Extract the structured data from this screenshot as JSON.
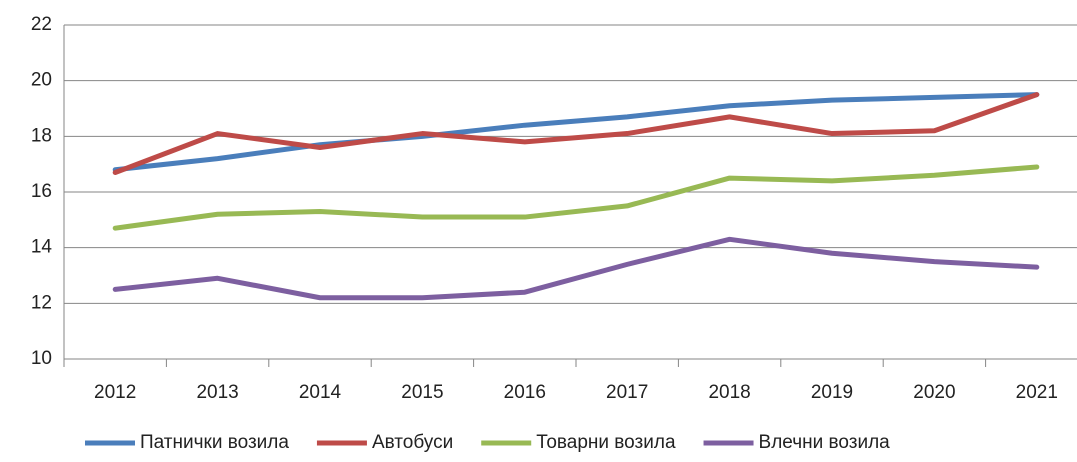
{
  "chart_data": {
    "type": "line",
    "categories": [
      "2012",
      "2013",
      "2014",
      "2015",
      "2016",
      "2017",
      "2018",
      "2019",
      "2020",
      "2021"
    ],
    "series": [
      {
        "name": "Патнички возила",
        "color": "#4a7ebb",
        "values": [
          16.8,
          17.2,
          17.7,
          18.0,
          18.4,
          18.7,
          19.1,
          19.3,
          19.4,
          19.5
        ]
      },
      {
        "name": "Автобуси",
        "color": "#be4b48",
        "values": [
          16.7,
          18.1,
          17.6,
          18.1,
          17.8,
          18.1,
          18.7,
          18.1,
          18.2,
          19.5
        ]
      },
      {
        "name": "Товарни возила",
        "color": "#98b954",
        "values": [
          14.7,
          15.2,
          15.3,
          15.1,
          15.1,
          15.5,
          16.5,
          16.4,
          16.6,
          16.9
        ]
      },
      {
        "name": "Влечни возила",
        "color": "#7d5fa0",
        "values": [
          12.5,
          12.9,
          12.2,
          12.2,
          12.4,
          13.4,
          14.3,
          13.8,
          13.5,
          13.3
        ]
      }
    ],
    "ylim": [
      10,
      22
    ],
    "yticks": [
      10,
      12,
      14,
      16,
      18,
      20,
      22
    ],
    "grid": true,
    "legend": "bottom"
  }
}
